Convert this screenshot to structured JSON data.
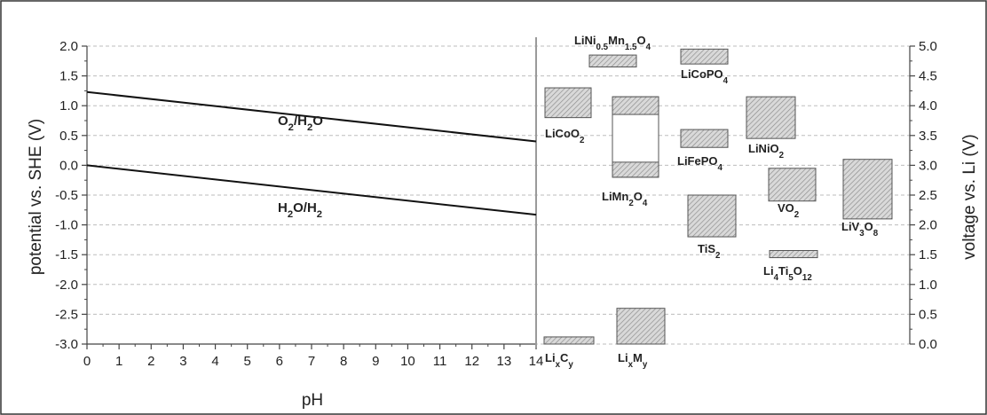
{
  "chart_data": {
    "type": "line",
    "xlabel": "pH",
    "ylabel_left": "potential vs. SHE (V)",
    "ylabel_right": "voltage vs. Li (V)",
    "xlim": [
      0,
      14
    ],
    "ylim_left": [
      -3.0,
      2.0
    ],
    "ylim_right": [
      0.0,
      5.0
    ],
    "x_ticks": [
      "0",
      "1",
      "2",
      "3",
      "4",
      "5",
      "6",
      "7",
      "8",
      "9",
      "10",
      "11",
      "12",
      "13",
      "14"
    ],
    "y_left_ticks": [
      "2.0",
      "1.5",
      "1.0",
      "0.5",
      "0.0",
      "-0.5",
      "-1.0",
      "-1.5",
      "-2.0",
      "-2.5",
      "-3.0"
    ],
    "y_left_tick_values": [
      2.0,
      1.5,
      1.0,
      0.5,
      0.0,
      -0.5,
      -1.0,
      -1.5,
      -2.0,
      -2.5,
      -3.0
    ],
    "y_right_ticks": [
      "5.0",
      "4.5",
      "4.0",
      "3.5",
      "3.0",
      "2.5",
      "2.0",
      "1.5",
      "1.0",
      "0.5",
      "0.0"
    ],
    "y_right_tick_values": [
      5.0,
      4.5,
      4.0,
      3.5,
      3.0,
      2.5,
      2.0,
      1.5,
      1.0,
      0.5,
      0.0
    ],
    "grid": "horizontal dashed",
    "lines": [
      {
        "label_main": "O",
        "label_sub1": "2",
        "label_mid": "/H",
        "label_sub2": "2",
        "label_end": "O",
        "x": [
          0,
          14
        ],
        "y": [
          1.23,
          0.4
        ]
      },
      {
        "label_main": "H",
        "label_sub1": "2",
        "label_mid": "O/H",
        "label_sub2": "2",
        "label_end": "",
        "x": [
          0,
          14
        ],
        "y": [
          0.0,
          -0.83
        ]
      }
    ],
    "materials": [
      {
        "parts": [
          [
            "Li",
            ""
          ],
          [
            "Ni",
            "0.5"
          ],
          [
            "Mn",
            "1.5"
          ],
          [
            "O",
            "4"
          ]
        ],
        "v_range": [
          4.65,
          4.85
        ]
      },
      {
        "parts": [
          [
            "LiCoPO",
            ""
          ],
          [
            "",
            "4"
          ]
        ],
        "v_range": [
          4.7,
          4.95
        ]
      },
      {
        "parts": [
          [
            "LiCoO",
            ""
          ],
          [
            "",
            "2"
          ]
        ],
        "v_range": [
          3.8,
          4.3
        ]
      },
      {
        "parts": [
          [
            "LiMn",
            ""
          ],
          [
            "",
            "2"
          ],
          [
            "O",
            ""
          ],
          [
            "",
            "4"
          ]
        ],
        "v_range": [
          2.8,
          4.15
        ],
        "split": true
      },
      {
        "parts": [
          [
            "LiFePO",
            ""
          ],
          [
            "",
            "4"
          ]
        ],
        "v_range": [
          3.3,
          3.6
        ]
      },
      {
        "parts": [
          [
            "LiNiO",
            ""
          ],
          [
            "",
            "2"
          ]
        ],
        "v_range": [
          3.45,
          4.15
        ]
      },
      {
        "parts": [
          [
            "TiS",
            ""
          ],
          [
            "",
            "2"
          ]
        ],
        "v_range": [
          1.8,
          2.5
        ]
      },
      {
        "parts": [
          [
            "VO",
            ""
          ],
          [
            "",
            "2"
          ]
        ],
        "v_range": [
          2.4,
          2.95
        ]
      },
      {
        "parts": [
          [
            "LiV",
            ""
          ],
          [
            "",
            "3"
          ],
          [
            "O",
            ""
          ],
          [
            "",
            "8"
          ]
        ],
        "v_range": [
          2.1,
          3.1
        ]
      },
      {
        "parts": [
          [
            "Li",
            ""
          ],
          [
            "",
            "4"
          ],
          [
            "Ti",
            ""
          ],
          [
            "",
            "5"
          ],
          [
            "O",
            ""
          ],
          [
            "",
            "12"
          ]
        ],
        "v_range": [
          1.45,
          1.57
        ]
      },
      {
        "parts": [
          [
            "Li",
            ""
          ],
          [
            "",
            "x"
          ],
          [
            "C",
            ""
          ],
          [
            "",
            "y"
          ]
        ],
        "v_range": [
          0.0,
          0.12
        ]
      },
      {
        "parts": [
          [
            "Li",
            ""
          ],
          [
            "",
            "x"
          ],
          [
            "M",
            ""
          ],
          [
            "",
            "y"
          ]
        ],
        "v_range": [
          0.0,
          0.6
        ]
      }
    ]
  }
}
